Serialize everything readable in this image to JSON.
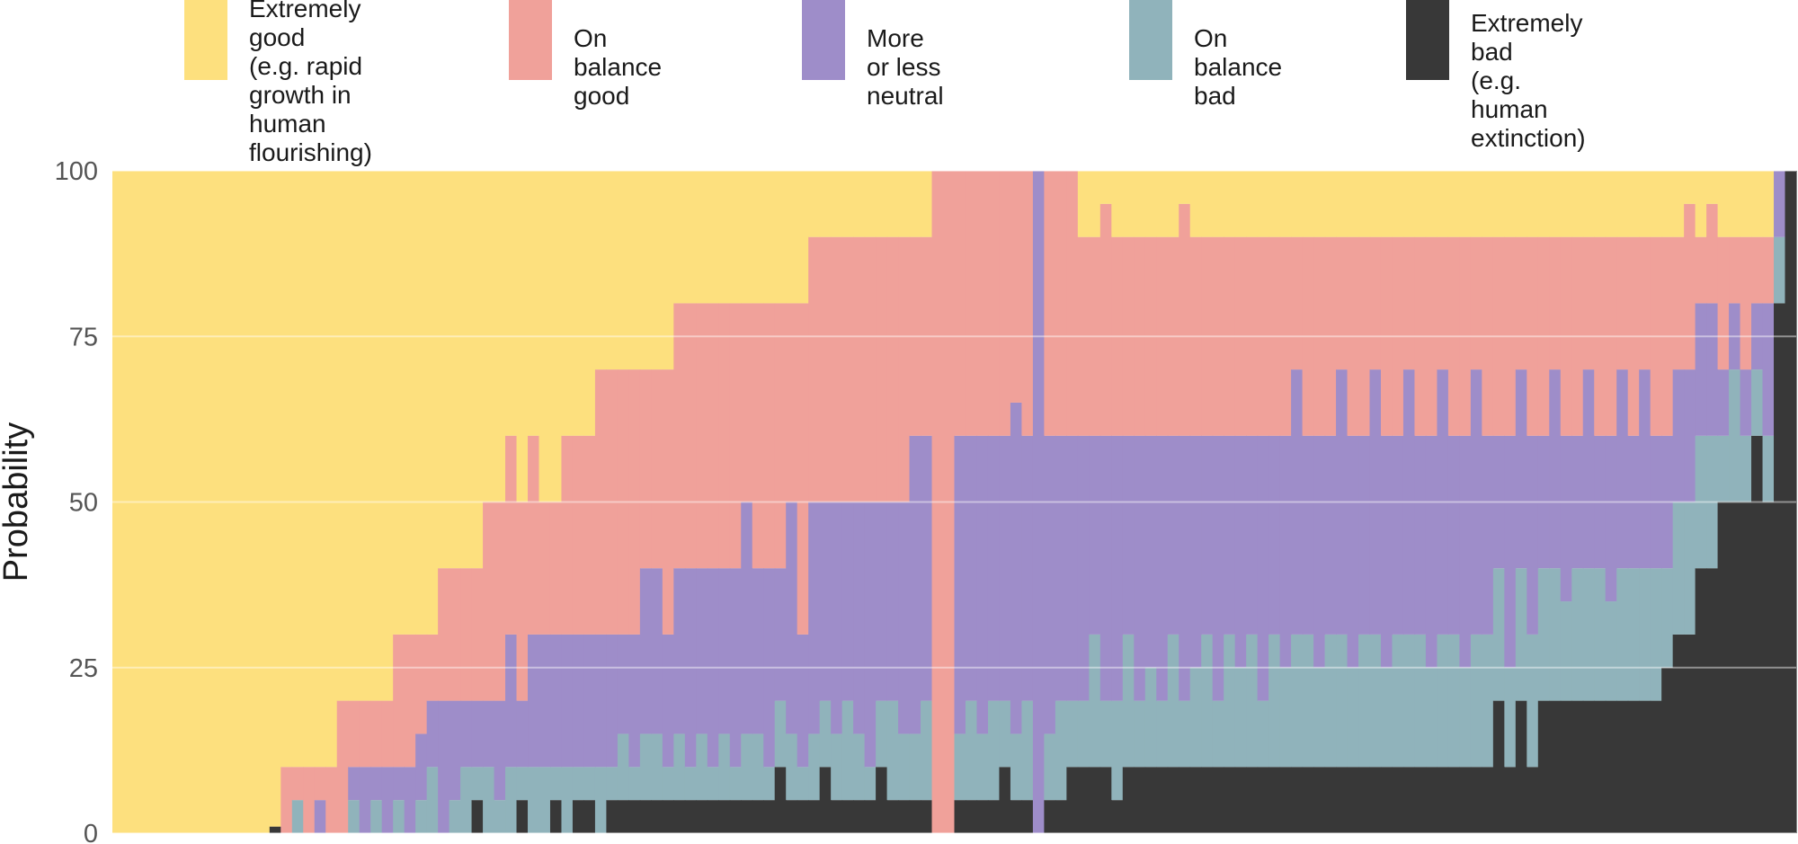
{
  "chart_data": {
    "type": "bar",
    "stacked": true,
    "ylabel": "Probability",
    "xlabel": "",
    "ylim": [
      0,
      100
    ],
    "yticks": [
      0,
      25,
      50,
      75,
      100
    ],
    "grid": true,
    "legend_position": "top",
    "legend": [
      {
        "key": "extremely_good",
        "label": "Extremely good\n(e.g. rapid growth in\nhuman flourishing)",
        "color": "#fde07e"
      },
      {
        "key": "on_balance_good",
        "label": "On balance good",
        "color": "#f0a19a"
      },
      {
        "key": "neutral",
        "label": "More or less neutral",
        "color": "#9e8dc9"
      },
      {
        "key": "on_balance_bad",
        "label": "On balance bad",
        "color": "#90b3bb"
      },
      {
        "key": "extremely_bad",
        "label": "Extremely bad\n(e.g. human extinction)",
        "color": "#383838"
      }
    ],
    "series_order_bottom_to_top": [
      "extremely_bad",
      "on_balance_bad",
      "neutral",
      "on_balance_good",
      "extremely_good"
    ],
    "bars_note": "Each bar is one respondent; columns give percentage for each outcome, bottom to top.",
    "bars": [
      [
        0,
        0,
        0,
        0,
        100
      ],
      [
        0,
        0,
        0,
        0,
        100
      ],
      [
        0,
        0,
        0,
        0,
        100
      ],
      [
        0,
        0,
        0,
        0,
        100
      ],
      [
        0,
        0,
        0,
        0,
        100
      ],
      [
        0,
        0,
        0,
        0,
        100
      ],
      [
        0,
        0,
        0,
        0,
        100
      ],
      [
        0,
        0,
        0,
        0,
        100
      ],
      [
        0,
        0,
        0,
        0,
        100
      ],
      [
        0,
        0,
        0,
        0,
        100
      ],
      [
        0,
        0,
        0,
        0,
        100
      ],
      [
        0,
        0,
        0,
        0,
        100
      ],
      [
        0,
        0,
        0,
        0,
        100
      ],
      [
        0,
        0,
        0,
        0,
        100
      ],
      [
        1,
        0,
        0,
        0,
        99
      ],
      [
        0,
        0,
        0,
        10,
        90
      ],
      [
        0,
        5,
        0,
        5,
        90
      ],
      [
        0,
        0,
        0,
        10,
        90
      ],
      [
        0,
        0,
        5,
        5,
        90
      ],
      [
        0,
        0,
        0,
        10,
        90
      ],
      [
        0,
        0,
        0,
        20,
        80
      ],
      [
        0,
        5,
        5,
        10,
        80
      ],
      [
        0,
        0,
        10,
        10,
        80
      ],
      [
        0,
        5,
        5,
        10,
        80
      ],
      [
        0,
        0,
        10,
        10,
        80
      ],
      [
        0,
        5,
        5,
        20,
        70
      ],
      [
        0,
        0,
        10,
        20,
        70
      ],
      [
        0,
        5,
        10,
        15,
        70
      ],
      [
        0,
        10,
        10,
        10,
        70
      ],
      [
        0,
        0,
        20,
        20,
        60
      ],
      [
        0,
        5,
        15,
        20,
        60
      ],
      [
        0,
        10,
        10,
        20,
        60
      ],
      [
        5,
        5,
        10,
        20,
        60
      ],
      [
        0,
        10,
        10,
        30,
        50
      ],
      [
        0,
        5,
        15,
        30,
        50
      ],
      [
        0,
        10,
        20,
        30,
        40
      ],
      [
        5,
        5,
        10,
        30,
        50
      ],
      [
        0,
        10,
        20,
        30,
        40
      ],
      [
        0,
        10,
        20,
        20,
        50
      ],
      [
        5,
        5,
        20,
        20,
        50
      ],
      [
        0,
        10,
        20,
        30,
        40
      ],
      [
        5,
        5,
        20,
        30,
        40
      ],
      [
        5,
        5,
        20,
        30,
        40
      ],
      [
        0,
        10,
        20,
        40,
        30
      ],
      [
        5,
        5,
        20,
        40,
        30
      ],
      [
        5,
        10,
        15,
        40,
        30
      ],
      [
        5,
        5,
        20,
        40,
        30
      ],
      [
        5,
        10,
        25,
        30,
        30
      ],
      [
        5,
        10,
        25,
        30,
        30
      ],
      [
        5,
        5,
        20,
        40,
        30
      ],
      [
        5,
        10,
        25,
        40,
        20
      ],
      [
        5,
        5,
        30,
        40,
        20
      ],
      [
        5,
        10,
        25,
        40,
        20
      ],
      [
        5,
        5,
        30,
        40,
        20
      ],
      [
        5,
        10,
        25,
        40,
        20
      ],
      [
        5,
        5,
        30,
        40,
        20
      ],
      [
        5,
        10,
        35,
        30,
        20
      ],
      [
        5,
        10,
        25,
        40,
        20
      ],
      [
        5,
        5,
        30,
        40,
        20
      ],
      [
        10,
        10,
        20,
        40,
        20
      ],
      [
        5,
        10,
        35,
        30,
        20
      ],
      [
        5,
        5,
        20,
        50,
        20
      ],
      [
        5,
        10,
        35,
        40,
        10
      ],
      [
        10,
        10,
        30,
        40,
        10
      ],
      [
        5,
        10,
        35,
        40,
        10
      ],
      [
        5,
        15,
        30,
        40,
        10
      ],
      [
        5,
        10,
        35,
        40,
        10
      ],
      [
        5,
        5,
        40,
        40,
        10
      ],
      [
        10,
        10,
        30,
        40,
        10
      ],
      [
        5,
        15,
        30,
        40,
        10
      ],
      [
        5,
        10,
        35,
        40,
        10
      ],
      [
        5,
        10,
        45,
        30,
        10
      ],
      [
        5,
        15,
        40,
        30,
        10
      ],
      [
        0,
        0,
        0,
        100,
        0
      ],
      [
        0,
        0,
        0,
        100,
        0
      ],
      [
        5,
        10,
        45,
        40,
        0
      ],
      [
        5,
        15,
        40,
        40,
        0
      ],
      [
        5,
        10,
        45,
        40,
        0
      ],
      [
        5,
        15,
        40,
        40,
        0
      ],
      [
        10,
        10,
        40,
        40,
        0
      ],
      [
        5,
        10,
        50,
        35,
        0
      ],
      [
        5,
        15,
        40,
        40,
        0
      ],
      [
        0,
        0,
        100,
        0,
        0
      ],
      [
        5,
        10,
        45,
        40,
        0
      ],
      [
        5,
        15,
        40,
        40,
        0
      ],
      [
        10,
        10,
        40,
        40,
        0
      ],
      [
        10,
        10,
        40,
        30,
        10
      ],
      [
        10,
        20,
        30,
        30,
        10
      ],
      [
        10,
        10,
        40,
        35,
        5
      ],
      [
        5,
        15,
        40,
        30,
        10
      ],
      [
        10,
        20,
        30,
        30,
        10
      ],
      [
        10,
        10,
        40,
        30,
        10
      ],
      [
        10,
        15,
        35,
        30,
        10
      ],
      [
        10,
        10,
        40,
        30,
        10
      ],
      [
        10,
        20,
        30,
        30,
        10
      ],
      [
        10,
        10,
        40,
        35,
        5
      ],
      [
        10,
        15,
        35,
        30,
        10
      ],
      [
        10,
        20,
        30,
        30,
        10
      ],
      [
        10,
        10,
        40,
        30,
        10
      ],
      [
        10,
        20,
        30,
        30,
        10
      ],
      [
        10,
        15,
        35,
        30,
        10
      ],
      [
        10,
        20,
        30,
        30,
        10
      ],
      [
        10,
        10,
        40,
        30,
        10
      ],
      [
        10,
        20,
        30,
        30,
        10
      ],
      [
        10,
        15,
        35,
        30,
        10
      ],
      [
        10,
        20,
        40,
        20,
        10
      ],
      [
        10,
        20,
        30,
        30,
        10
      ],
      [
        10,
        15,
        35,
        30,
        10
      ],
      [
        10,
        20,
        30,
        30,
        10
      ],
      [
        10,
        20,
        40,
        20,
        10
      ],
      [
        10,
        15,
        35,
        30,
        10
      ],
      [
        10,
        20,
        30,
        30,
        10
      ],
      [
        10,
        20,
        40,
        20,
        10
      ],
      [
        10,
        15,
        35,
        30,
        10
      ],
      [
        10,
        20,
        30,
        30,
        10
      ],
      [
        10,
        20,
        40,
        20,
        10
      ],
      [
        10,
        20,
        30,
        30,
        10
      ],
      [
        10,
        15,
        35,
        30,
        10
      ],
      [
        10,
        20,
        40,
        20,
        10
      ],
      [
        10,
        20,
        30,
        30,
        10
      ],
      [
        10,
        15,
        35,
        30,
        10
      ],
      [
        10,
        20,
        40,
        20,
        10
      ],
      [
        10,
        20,
        30,
        30,
        10
      ],
      [
        20,
        20,
        20,
        30,
        10
      ],
      [
        10,
        15,
        35,
        30,
        10
      ],
      [
        20,
        20,
        30,
        20,
        10
      ],
      [
        10,
        20,
        30,
        30,
        10
      ],
      [
        20,
        20,
        20,
        30,
        10
      ],
      [
        20,
        20,
        30,
        20,
        10
      ],
      [
        20,
        15,
        25,
        30,
        10
      ],
      [
        20,
        20,
        20,
        30,
        10
      ],
      [
        20,
        20,
        30,
        20,
        10
      ],
      [
        20,
        20,
        20,
        30,
        10
      ],
      [
        20,
        15,
        25,
        30,
        10
      ],
      [
        20,
        20,
        30,
        20,
        10
      ],
      [
        20,
        20,
        20,
        30,
        10
      ],
      [
        20,
        20,
        30,
        20,
        10
      ],
      [
        20,
        20,
        20,
        30,
        10
      ],
      [
        25,
        15,
        20,
        30,
        10
      ],
      [
        30,
        20,
        20,
        20,
        10
      ],
      [
        30,
        20,
        20,
        25,
        5
      ],
      [
        40,
        20,
        20,
        10,
        10
      ],
      [
        40,
        20,
        20,
        15,
        5
      ],
      [
        50,
        10,
        10,
        20,
        10
      ],
      [
        50,
        20,
        10,
        10,
        10
      ],
      [
        50,
        10,
        10,
        20,
        10
      ],
      [
        60,
        10,
        10,
        10,
        10
      ],
      [
        50,
        10,
        20,
        10,
        10
      ],
      [
        80,
        10,
        10,
        0,
        0
      ],
      [
        100,
        0,
        0,
        0,
        0
      ]
    ]
  }
}
